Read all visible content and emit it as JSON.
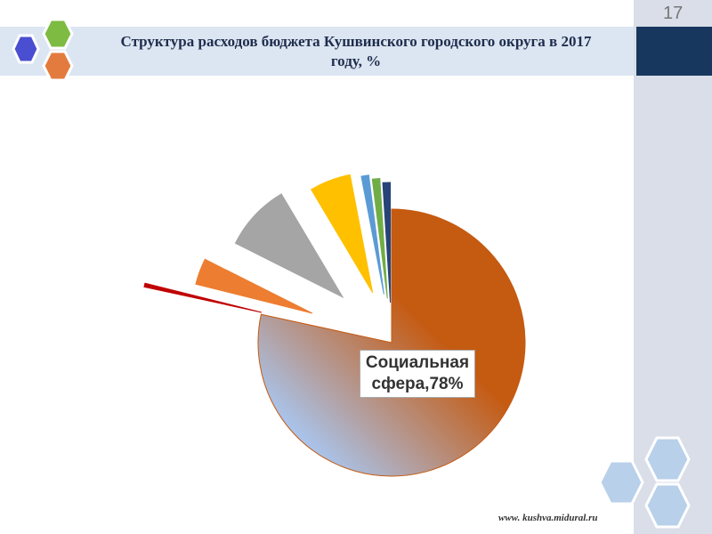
{
  "page_number": "17",
  "footer": "www. kushva.midural.ru",
  "chart_data": {
    "type": "pie",
    "title": "Структура расходов бюджета Кушвинского городского округа в 2017 году, %",
    "values": [
      78,
      0.5,
      3.5,
      9,
      5.5,
      1,
      1,
      1
    ],
    "value_labels": [
      "Социальная сфера,78%",
      null,
      null,
      null,
      null,
      null,
      null,
      null
    ],
    "colors": [
      "#c55a11",
      "#c00000",
      "#ed7d31",
      "#a5a5a5",
      "#ffc000",
      "#5b9bd5",
      "#70ad47",
      "#264478"
    ]
  }
}
